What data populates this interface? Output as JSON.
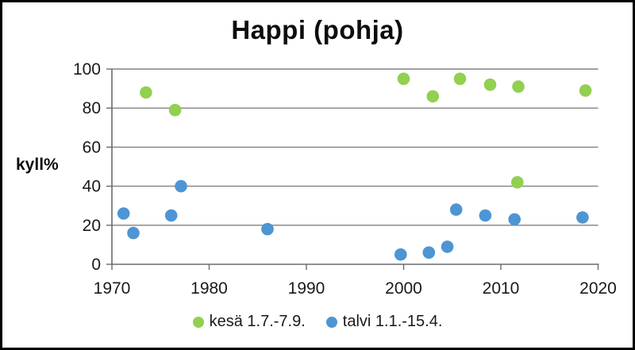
{
  "chart": {
    "title": "Happi (pohja)",
    "y_axis_label": "kyll%"
  },
  "chart_data": {
    "type": "scatter",
    "title": "Happi (pohja)",
    "xlabel": "",
    "ylabel": "kyll%",
    "xlim": [
      1970,
      2020
    ],
    "ylim": [
      0,
      100
    ],
    "x_ticks": [
      1970,
      1980,
      1990,
      2000,
      2010,
      2020
    ],
    "y_ticks": [
      0,
      20,
      40,
      60,
      80,
      100
    ],
    "grid": "horizontal",
    "legend_position": "bottom",
    "style": {
      "grid_color": "#808183",
      "axis_color": "#6a6c6e",
      "text_color": "#1a1a1a",
      "marker_radius": 7.8
    },
    "series": [
      {
        "id": "kesa",
        "name": "kesä 1.7.-7.9.",
        "color": "#92d050",
        "points": [
          [
            1973.5,
            88
          ],
          [
            1976.5,
            79
          ],
          [
            2000.0,
            95
          ],
          [
            2003.0,
            86
          ],
          [
            2005.8,
            95
          ],
          [
            2008.9,
            92
          ],
          [
            2011.8,
            91
          ],
          [
            2011.7,
            42
          ],
          [
            2018.7,
            89
          ]
        ]
      },
      {
        "id": "talvi",
        "name": "talvi 1.1.-15.4.",
        "color": "#4e95d3",
        "points": [
          [
            1971.2,
            26
          ],
          [
            1972.2,
            16
          ],
          [
            1976.1,
            25
          ],
          [
            1977.1,
            40
          ],
          [
            1986.0,
            18
          ],
          [
            1999.7,
            5
          ],
          [
            2002.6,
            6
          ],
          [
            2004.5,
            9
          ],
          [
            2005.4,
            28
          ],
          [
            2008.4,
            25
          ],
          [
            2011.4,
            23
          ],
          [
            2018.4,
            24
          ]
        ]
      }
    ]
  }
}
